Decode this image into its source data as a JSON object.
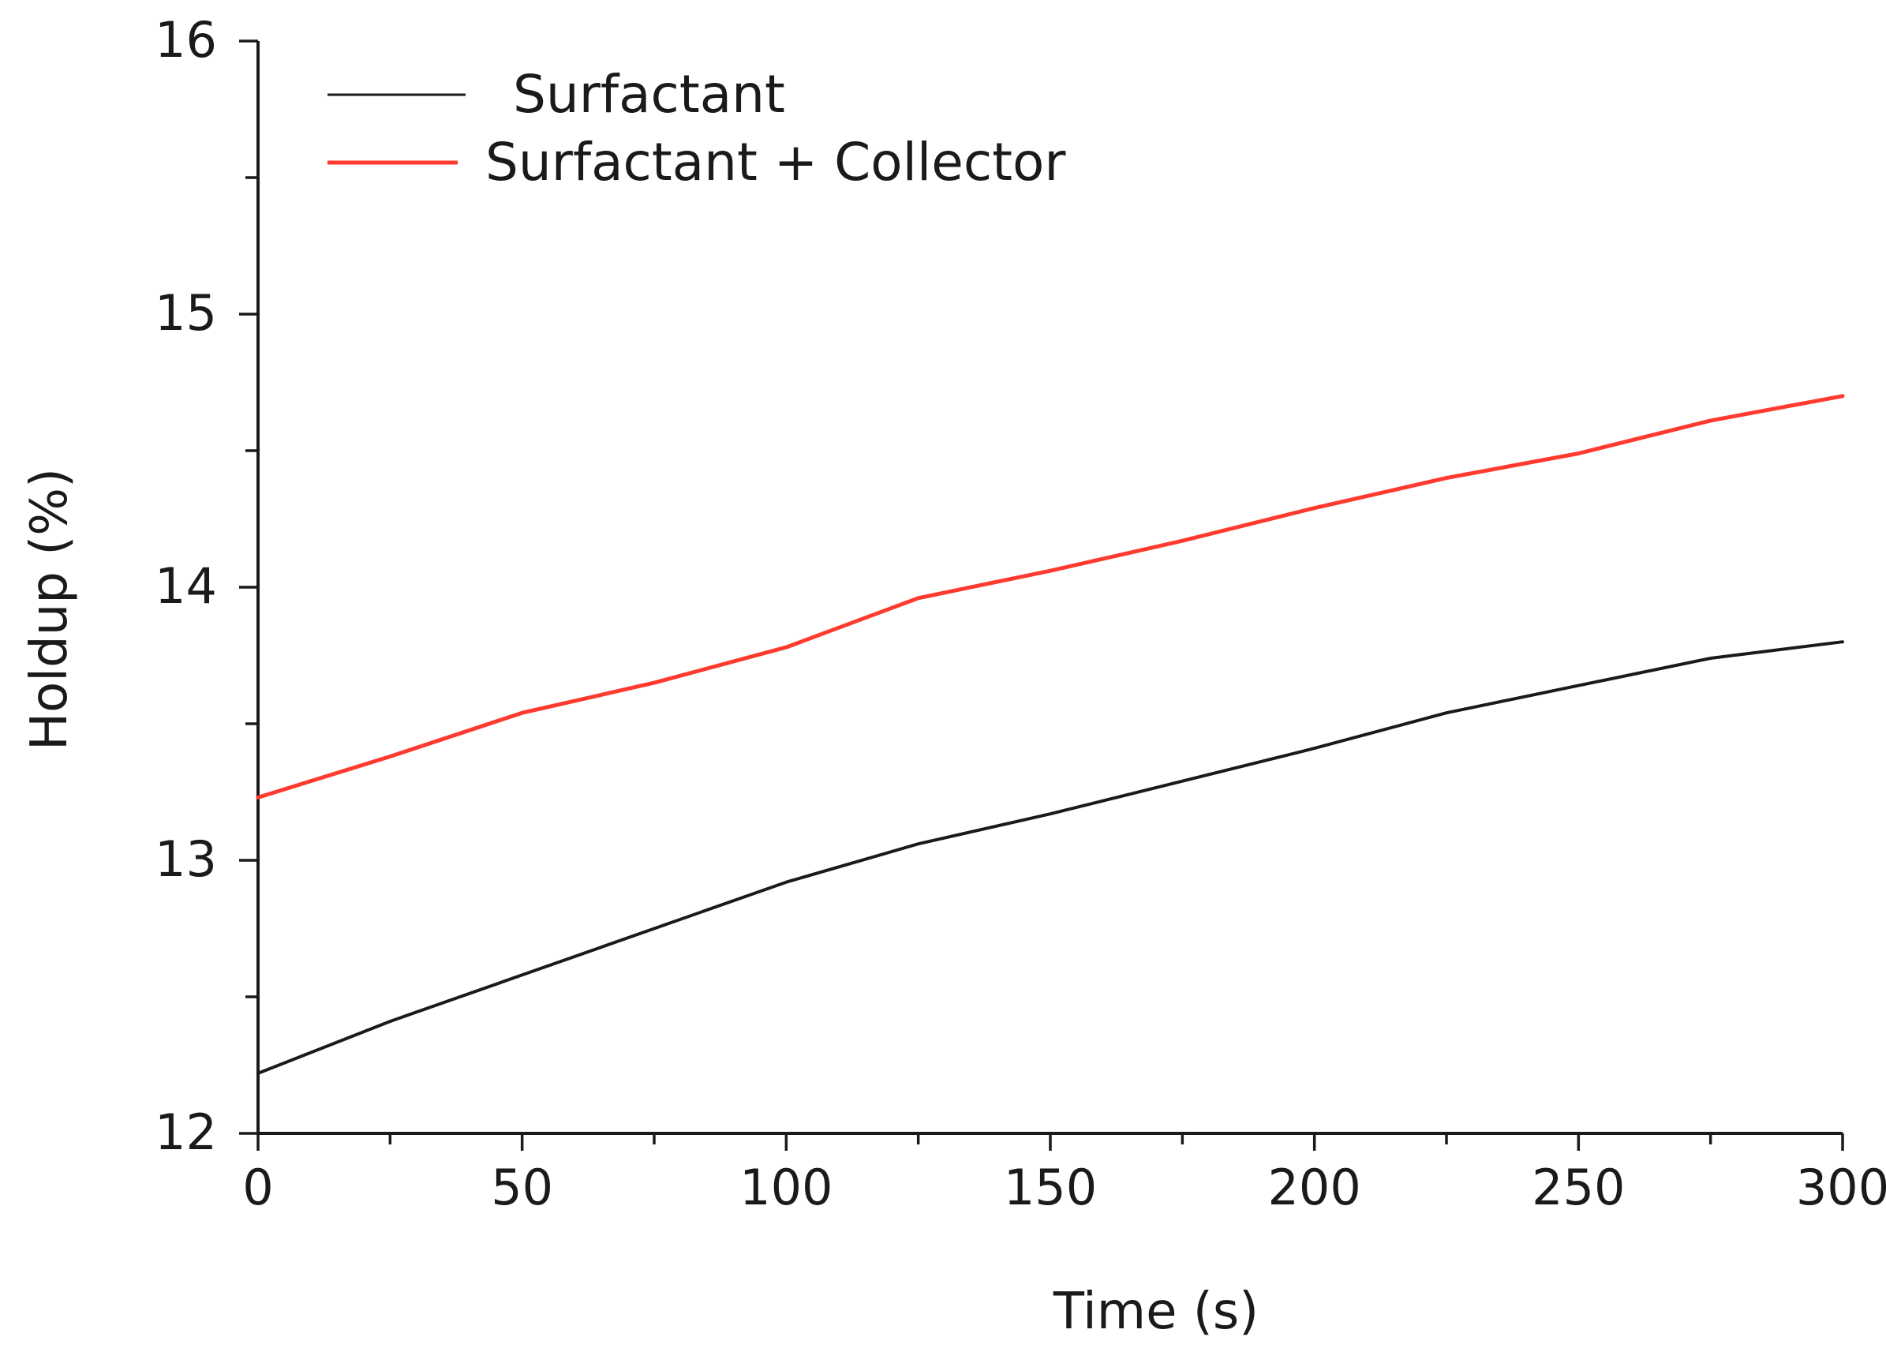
{
  "chart_data": {
    "type": "line",
    "xlabel": "Time (s)",
    "ylabel": "Holdup (%)",
    "xlim": [
      0,
      300
    ],
    "ylim": [
      12,
      16
    ],
    "x_ticks": [
      0,
      50,
      100,
      150,
      200,
      250,
      300
    ],
    "y_ticks": [
      12,
      13,
      14,
      15,
      16
    ],
    "grid": false,
    "legend_position": "top-left",
    "series": [
      {
        "name": "Surfactant",
        "color": "#1a1a1a",
        "x": [
          0,
          25,
          50,
          75,
          100,
          125,
          150,
          175,
          200,
          225,
          250,
          275,
          300
        ],
        "y": [
          12.22,
          12.41,
          12.58,
          12.75,
          12.92,
          13.06,
          13.17,
          13.29,
          13.41,
          13.54,
          13.64,
          13.74,
          13.8
        ]
      },
      {
        "name": "Surfactant + Collector",
        "color": "#ff3b30",
        "x": [
          0,
          25,
          50,
          75,
          100,
          125,
          150,
          175,
          200,
          225,
          250,
          275,
          300
        ],
        "y": [
          13.23,
          13.38,
          13.54,
          13.65,
          13.78,
          13.96,
          14.06,
          14.17,
          14.29,
          14.4,
          14.49,
          14.61,
          14.7
        ]
      }
    ]
  }
}
